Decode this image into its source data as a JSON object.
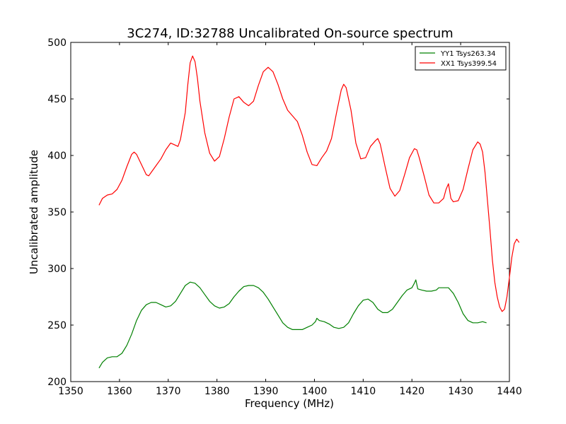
{
  "chart_data": {
    "type": "line",
    "title": "3C274, ID:32788 Uncalibrated On-source spectrum",
    "xlabel": "Frequency (MHz)",
    "ylabel": "Uncalibrated amplitude",
    "xlim": [
      1350,
      1440
    ],
    "ylim": [
      200,
      500
    ],
    "xticks": [
      1350,
      1360,
      1370,
      1380,
      1390,
      1400,
      1410,
      1420,
      1430,
      1440
    ],
    "yticks": [
      200,
      250,
      300,
      350,
      400,
      450,
      500
    ],
    "grid": false,
    "legend": "top-right",
    "series": [
      {
        "name": "YY1 Tsys263.34",
        "color": "#008000",
        "points": [
          [
            1355.8,
            212
          ],
          [
            1356.5,
            217
          ],
          [
            1357.5,
            221
          ],
          [
            1358.5,
            222
          ],
          [
            1359.5,
            222
          ],
          [
            1360.5,
            225
          ],
          [
            1361.5,
            232
          ],
          [
            1362.5,
            242
          ],
          [
            1363.5,
            254
          ],
          [
            1364.5,
            263
          ],
          [
            1365.5,
            268
          ],
          [
            1366.5,
            270
          ],
          [
            1367.5,
            270
          ],
          [
            1368.5,
            268
          ],
          [
            1369.5,
            266
          ],
          [
            1370.5,
            267
          ],
          [
            1371.5,
            271
          ],
          [
            1372.5,
            278
          ],
          [
            1373.5,
            285
          ],
          [
            1374.5,
            288
          ],
          [
            1375.5,
            287
          ],
          [
            1376.5,
            283
          ],
          [
            1377.5,
            277
          ],
          [
            1378.5,
            271
          ],
          [
            1379.5,
            267
          ],
          [
            1380.5,
            265
          ],
          [
            1381.5,
            266
          ],
          [
            1382.5,
            269
          ],
          [
            1383.5,
            275
          ],
          [
            1384.5,
            280
          ],
          [
            1385.5,
            284
          ],
          [
            1386.5,
            285
          ],
          [
            1387.5,
            285
          ],
          [
            1388.5,
            283
          ],
          [
            1389.5,
            279
          ],
          [
            1390.5,
            273
          ],
          [
            1391.5,
            266
          ],
          [
            1392.5,
            259
          ],
          [
            1393.5,
            252
          ],
          [
            1394.5,
            248
          ],
          [
            1395.5,
            246
          ],
          [
            1396.5,
            246
          ],
          [
            1397.5,
            246
          ],
          [
            1398.5,
            248
          ],
          [
            1399.5,
            250
          ],
          [
            1400.2,
            253
          ],
          [
            1400.5,
            256
          ],
          [
            1401,
            254
          ],
          [
            1402,
            253
          ],
          [
            1403,
            251
          ],
          [
            1404,
            248
          ],
          [
            1405,
            247
          ],
          [
            1406,
            248
          ],
          [
            1407,
            252
          ],
          [
            1408,
            260
          ],
          [
            1409,
            267
          ],
          [
            1410,
            272
          ],
          [
            1411,
            273
          ],
          [
            1412,
            270
          ],
          [
            1413,
            264
          ],
          [
            1414,
            261
          ],
          [
            1415,
            261
          ],
          [
            1416,
            264
          ],
          [
            1417,
            270
          ],
          [
            1418,
            276
          ],
          [
            1419,
            281
          ],
          [
            1420,
            283
          ],
          [
            1420.5,
            287
          ],
          [
            1420.8,
            290
          ],
          [
            1421.2,
            282
          ],
          [
            1422,
            281
          ],
          [
            1423,
            280
          ],
          [
            1424,
            280
          ],
          [
            1425,
            281
          ],
          [
            1425.5,
            283
          ],
          [
            1426.5,
            283
          ],
          [
            1427.5,
            283
          ],
          [
            1428.5,
            278
          ],
          [
            1429.5,
            270
          ],
          [
            1430.5,
            260
          ],
          [
            1431.5,
            254
          ],
          [
            1432.5,
            252
          ],
          [
            1433.5,
            252
          ],
          [
            1434.5,
            253
          ],
          [
            1435.3,
            252
          ]
        ]
      },
      {
        "name": "XX1 Tsys399.54",
        "color": "#ff0000",
        "points": [
          [
            1355.8,
            356
          ],
          [
            1356.5,
            362
          ],
          [
            1357.5,
            365
          ],
          [
            1358.5,
            366
          ],
          [
            1359.5,
            370
          ],
          [
            1360.5,
            378
          ],
          [
            1361.5,
            390
          ],
          [
            1362.5,
            401
          ],
          [
            1363,
            403
          ],
          [
            1363.5,
            401
          ],
          [
            1364.5,
            392
          ],
          [
            1365.5,
            383
          ],
          [
            1366,
            382
          ],
          [
            1366.5,
            385
          ],
          [
            1367.5,
            391
          ],
          [
            1368.5,
            397
          ],
          [
            1369.5,
            405
          ],
          [
            1370.5,
            411
          ],
          [
            1371.5,
            409
          ],
          [
            1372,
            408
          ],
          [
            1372.5,
            414
          ],
          [
            1373.5,
            438
          ],
          [
            1374,
            462
          ],
          [
            1374.5,
            482
          ],
          [
            1375,
            488
          ],
          [
            1375.5,
            483
          ],
          [
            1376,
            468
          ],
          [
            1376.5,
            448
          ],
          [
            1377.5,
            420
          ],
          [
            1378.5,
            402
          ],
          [
            1379.5,
            395
          ],
          [
            1380.5,
            399
          ],
          [
            1381.5,
            415
          ],
          [
            1382.5,
            434
          ],
          [
            1383.5,
            450
          ],
          [
            1384.5,
            452
          ],
          [
            1385.5,
            447
          ],
          [
            1386.5,
            444
          ],
          [
            1387.5,
            448
          ],
          [
            1388.5,
            462
          ],
          [
            1389.5,
            474
          ],
          [
            1390.5,
            478
          ],
          [
            1391.5,
            474
          ],
          [
            1392.5,
            463
          ],
          [
            1393.5,
            450
          ],
          [
            1394.5,
            440
          ],
          [
            1395.5,
            435
          ],
          [
            1396.5,
            430
          ],
          [
            1397.5,
            418
          ],
          [
            1398.5,
            403
          ],
          [
            1399.5,
            392
          ],
          [
            1400.5,
            391
          ],
          [
            1401.5,
            398
          ],
          [
            1402.5,
            404
          ],
          [
            1403.5,
            415
          ],
          [
            1404.5,
            437
          ],
          [
            1405.5,
            458
          ],
          [
            1406,
            463
          ],
          [
            1406.5,
            460
          ],
          [
            1407.5,
            440
          ],
          [
            1408.5,
            411
          ],
          [
            1409.5,
            397
          ],
          [
            1410.5,
            398
          ],
          [
            1411.5,
            408
          ],
          [
            1412.5,
            413
          ],
          [
            1413,
            415
          ],
          [
            1413.5,
            410
          ],
          [
            1414.5,
            390
          ],
          [
            1415.5,
            371
          ],
          [
            1416.5,
            364
          ],
          [
            1417.5,
            369
          ],
          [
            1418.5,
            383
          ],
          [
            1419.5,
            398
          ],
          [
            1420.5,
            406
          ],
          [
            1421,
            405
          ],
          [
            1421.5,
            398
          ],
          [
            1422.5,
            382
          ],
          [
            1423.5,
            365
          ],
          [
            1424.5,
            358
          ],
          [
            1425.5,
            358
          ],
          [
            1426.5,
            362
          ],
          [
            1427,
            370
          ],
          [
            1427.5,
            375
          ],
          [
            1428,
            362
          ],
          [
            1428.5,
            359
          ],
          [
            1429.5,
            360
          ],
          [
            1430.5,
            370
          ],
          [
            1431.5,
            388
          ],
          [
            1432.5,
            405
          ],
          [
            1433.5,
            412
          ],
          [
            1434,
            410
          ],
          [
            1434.5,
            403
          ],
          [
            1435,
            385
          ],
          [
            1435.5,
            360
          ],
          [
            1436,
            335
          ],
          [
            1436.5,
            308
          ],
          [
            1437,
            288
          ],
          [
            1437.5,
            275
          ],
          [
            1438,
            266
          ],
          [
            1438.5,
            262
          ],
          [
            1439,
            264
          ],
          [
            1439.5,
            275
          ],
          [
            1440,
            292
          ],
          [
            1440.5,
            310
          ],
          [
            1441,
            322
          ],
          [
            1441.5,
            326
          ],
          [
            1442,
            323
          ]
        ]
      }
    ]
  }
}
